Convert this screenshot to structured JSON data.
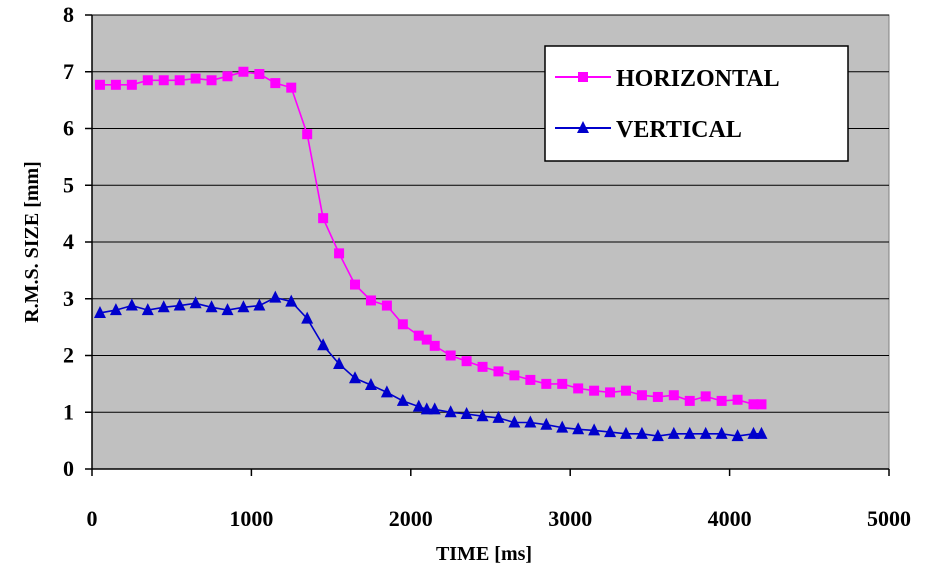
{
  "chart_data": {
    "type": "line",
    "xlabel": "TIME [ms]",
    "ylabel": "R.M.S. SIZE [mm]",
    "xlim": [
      0,
      5000
    ],
    "ylim": [
      0,
      8
    ],
    "xticks": [
      "0",
      "1000",
      "2000",
      "3000",
      "4000",
      "5000"
    ],
    "yticks": [
      "0",
      "1",
      "2",
      "3",
      "4",
      "5",
      "6",
      "7",
      "8"
    ],
    "grid": "horizontal",
    "legend": "top-right",
    "colors": {
      "plot_background": "#c0c0c0",
      "gridline": "#000000"
    },
    "series": [
      {
        "name": "HORIZONTAL",
        "color": "#ff00ff",
        "marker": "square",
        "x": [
          50,
          150,
          250,
          350,
          450,
          550,
          650,
          750,
          850,
          950,
          1050,
          1150,
          1250,
          1350,
          1450,
          1550,
          1650,
          1750,
          1850,
          1950,
          2050,
          2100,
          2150,
          2250,
          2350,
          2450,
          2550,
          2650,
          2750,
          2850,
          2950,
          3050,
          3150,
          3250,
          3350,
          3450,
          3550,
          3650,
          3750,
          3850,
          3950,
          4050,
          4150,
          4200
        ],
        "y": [
          6.77,
          6.77,
          6.77,
          6.85,
          6.85,
          6.85,
          6.88,
          6.85,
          6.92,
          7.0,
          6.96,
          6.8,
          6.72,
          5.9,
          4.42,
          3.8,
          3.25,
          2.97,
          2.88,
          2.55,
          2.35,
          2.28,
          2.17,
          2.0,
          1.9,
          1.8,
          1.72,
          1.65,
          1.57,
          1.5,
          1.5,
          1.42,
          1.38,
          1.35,
          1.38,
          1.3,
          1.27,
          1.3,
          1.2,
          1.28,
          1.2,
          1.22,
          1.14,
          1.14
        ]
      },
      {
        "name": "VERTICAL",
        "color": "#0000cc",
        "marker": "triangle",
        "x": [
          50,
          150,
          250,
          350,
          450,
          550,
          650,
          750,
          850,
          950,
          1050,
          1150,
          1250,
          1350,
          1450,
          1550,
          1650,
          1750,
          1850,
          1950,
          2050,
          2100,
          2150,
          2250,
          2350,
          2450,
          2550,
          2650,
          2750,
          2850,
          2950,
          3050,
          3150,
          3250,
          3350,
          3450,
          3550,
          3650,
          3750,
          3850,
          3950,
          4050,
          4150,
          4200
        ],
        "y": [
          2.75,
          2.8,
          2.88,
          2.8,
          2.85,
          2.88,
          2.92,
          2.85,
          2.8,
          2.85,
          2.88,
          3.02,
          2.95,
          2.65,
          2.18,
          1.85,
          1.6,
          1.48,
          1.35,
          1.2,
          1.1,
          1.05,
          1.05,
          1.0,
          0.97,
          0.93,
          0.9,
          0.82,
          0.82,
          0.78,
          0.73,
          0.7,
          0.68,
          0.65,
          0.62,
          0.62,
          0.58,
          0.62,
          0.62,
          0.62,
          0.62,
          0.58,
          0.62,
          0.62
        ]
      }
    ]
  }
}
